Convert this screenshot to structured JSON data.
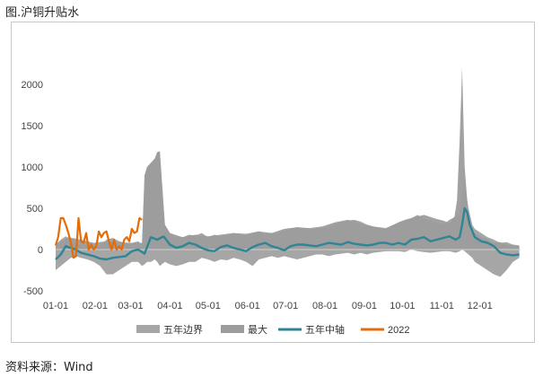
{
  "title": "图.沪铜升贴水",
  "source": "资料来源：Wind",
  "chart_data": {
    "type": "line",
    "title": "图.沪铜升贴水",
    "xlabel": "",
    "ylabel": "",
    "ylim": [
      -500,
      2500
    ],
    "yticks": [
      -500,
      0,
      500,
      1000,
      1500,
      2000
    ],
    "xlim": [
      0,
      366
    ],
    "xtick_labels": [
      "01-01",
      "02-01",
      "03-01",
      "04-01",
      "05-01",
      "06-01",
      "07-01",
      "08-01",
      "09-01",
      "10-01",
      "11-01",
      "12-01"
    ],
    "xtick_days": [
      0,
      31,
      59,
      90,
      120,
      151,
      181,
      212,
      243,
      273,
      304,
      334
    ],
    "grid": false,
    "legend_position": "bottom",
    "colors": {
      "band": "#a6a6a6",
      "max": "#9c9c9c",
      "median": "#2f8595",
      "y2022": "#e46c0a"
    },
    "series": [
      {
        "name": "五年边界",
        "type": "band",
        "x": [
          0,
          4,
          8,
          12,
          16,
          20,
          25,
          30,
          35,
          40,
          45,
          50,
          55,
          60,
          65,
          68,
          70,
          72,
          75,
          78,
          80,
          82,
          86,
          90,
          95,
          100,
          105,
          110,
          115,
          120,
          125,
          130,
          135,
          140,
          145,
          150,
          155,
          160,
          165,
          170,
          175,
          180,
          185,
          190,
          195,
          200,
          205,
          210,
          215,
          220,
          225,
          230,
          235,
          240,
          245,
          250,
          255,
          260,
          265,
          270,
          275,
          280,
          285,
          290,
          295,
          300,
          305,
          310,
          315,
          318,
          320,
          322,
          325,
          328,
          330,
          335,
          340,
          345,
          350,
          355,
          360,
          365
        ],
        "upper": [
          60,
          120,
          160,
          120,
          80,
          60,
          60,
          50,
          40,
          120,
          140,
          100,
          80,
          80,
          100,
          60,
          900,
          1000,
          1050,
          1100,
          1180,
          1190,
          300,
          200,
          150,
          150,
          180,
          170,
          200,
          150,
          180,
          160,
          170,
          200,
          180,
          170,
          200,
          220,
          180,
          200,
          190,
          230,
          250,
          270,
          260,
          240,
          250,
          260,
          280,
          300,
          330,
          350,
          360,
          340,
          300,
          280,
          250,
          250,
          280,
          330,
          360,
          380,
          420,
          370,
          350,
          320,
          300,
          360,
          400,
          420,
          700,
          800,
          500,
          300,
          250,
          200,
          150,
          120,
          80,
          90,
          60,
          50
        ],
        "lower": [
          -250,
          -200,
          -150,
          -100,
          -80,
          -100,
          -120,
          -150,
          -200,
          -300,
          -300,
          -250,
          -200,
          -150,
          -150,
          -200,
          -180,
          -150,
          -150,
          -120,
          -150,
          -200,
          -150,
          -180,
          -200,
          -180,
          -150,
          -150,
          -100,
          -120,
          -150,
          -120,
          -130,
          -100,
          -120,
          -150,
          -200,
          -120,
          -100,
          -80,
          -100,
          -80,
          -100,
          -120,
          -100,
          -80,
          -60,
          -60,
          -80,
          -60,
          -50,
          -40,
          -60,
          -40,
          -60,
          -40,
          -30,
          -20,
          -20,
          -20,
          -30,
          0,
          -20,
          -30,
          -40,
          -30,
          -20,
          -20,
          -40,
          -20,
          0,
          -20,
          -60,
          -100,
          -150,
          -200,
          -250,
          -300,
          -330,
          -250,
          -150,
          -100
        ]
      },
      {
        "name": "最大",
        "type": "area",
        "x": [
          0,
          10,
          20,
          30,
          40,
          50,
          60,
          68,
          70,
          72,
          75,
          78,
          80,
          82,
          86,
          90,
          100,
          110,
          120,
          130,
          140,
          150,
          160,
          170,
          180,
          190,
          200,
          210,
          220,
          230,
          240,
          250,
          260,
          270,
          280,
          290,
          300,
          305,
          310,
          314,
          316,
          318,
          320,
          322,
          324,
          326,
          328,
          330,
          335,
          340,
          345,
          350,
          355,
          360,
          365
        ],
        "values": [
          60,
          150,
          120,
          80,
          100,
          90,
          80,
          80,
          900,
          1000,
          1050,
          1100,
          1180,
          1190,
          300,
          200,
          150,
          180,
          160,
          180,
          200,
          190,
          220,
          200,
          250,
          270,
          260,
          280,
          330,
          360,
          320,
          280,
          260,
          330,
          380,
          420,
          370,
          350,
          320,
          400,
          600,
          1300,
          2200,
          1000,
          600,
          300,
          250,
          200,
          150,
          120,
          80,
          90,
          60,
          50,
          40
        ]
      },
      {
        "name": "五年中轴",
        "type": "line",
        "x": [
          0,
          4,
          8,
          12,
          16,
          20,
          25,
          30,
          35,
          40,
          45,
          50,
          55,
          60,
          65,
          70,
          75,
          80,
          85,
          90,
          95,
          100,
          105,
          110,
          115,
          120,
          125,
          130,
          135,
          140,
          145,
          150,
          155,
          160,
          165,
          170,
          175,
          180,
          185,
          190,
          195,
          200,
          205,
          210,
          215,
          220,
          225,
          230,
          235,
          240,
          245,
          250,
          255,
          260,
          265,
          270,
          275,
          280,
          285,
          290,
          295,
          300,
          305,
          310,
          315,
          318,
          320,
          322,
          324,
          326,
          330,
          335,
          340,
          345,
          350,
          355,
          360,
          365
        ],
        "values": [
          -120,
          -60,
          40,
          20,
          0,
          -40,
          -60,
          -80,
          -110,
          -120,
          -100,
          -90,
          -80,
          -20,
          0,
          -50,
          150,
          120,
          160,
          60,
          20,
          40,
          80,
          60,
          20,
          -10,
          -20,
          30,
          50,
          20,
          0,
          -20,
          30,
          60,
          80,
          40,
          20,
          -10,
          40,
          60,
          60,
          50,
          40,
          60,
          80,
          70,
          60,
          90,
          70,
          60,
          50,
          60,
          80,
          80,
          60,
          80,
          60,
          120,
          130,
          150,
          100,
          120,
          140,
          160,
          120,
          150,
          300,
          500,
          450,
          300,
          150,
          100,
          80,
          40,
          -40,
          -60,
          -70,
          -60
        ]
      },
      {
        "name": "2022",
        "type": "line",
        "x": [
          0,
          2,
          4,
          6,
          8,
          10,
          12,
          14,
          16,
          18,
          20,
          22,
          24,
          26,
          28,
          30,
          32,
          34,
          36,
          38,
          40,
          42,
          44,
          46,
          48,
          50,
          52,
          54,
          56,
          58,
          60,
          62,
          64,
          66,
          68
        ],
        "values": [
          50,
          150,
          380,
          380,
          300,
          200,
          80,
          -100,
          -80,
          380,
          100,
          80,
          200,
          0,
          60,
          0,
          40,
          220,
          150,
          200,
          220,
          100,
          0,
          120,
          0,
          40,
          0,
          120,
          150,
          100,
          250,
          200,
          220,
          380,
          360
        ]
      }
    ]
  }
}
